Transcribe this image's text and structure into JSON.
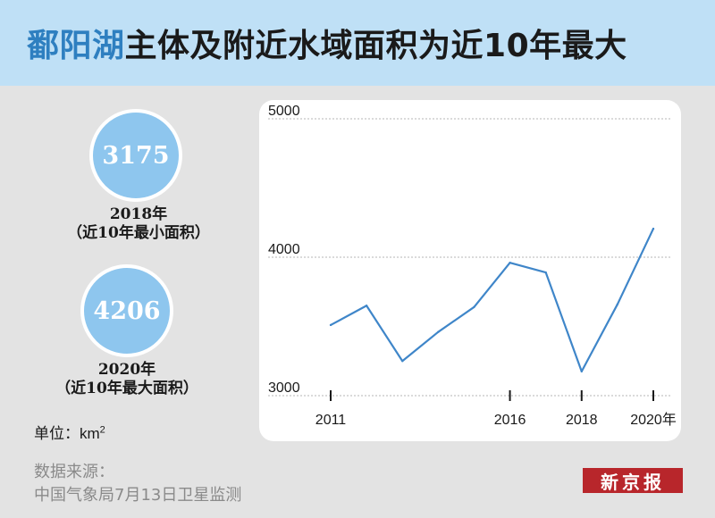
{
  "title": {
    "highlight": "鄱阳湖",
    "rest": "主体及附近水域面积为近10年最大"
  },
  "stats": [
    {
      "value": "3175",
      "year": "2018年",
      "note": "（近10年最小面积）"
    },
    {
      "value": "4206",
      "year": "2020年",
      "note": "（近10年最大面积）"
    }
  ],
  "unit": {
    "label": "单位：km",
    "sup": "2"
  },
  "source": {
    "label": "数据来源：",
    "text": "中国气象局7月13日卫星监测"
  },
  "brand": "新京报",
  "colors": {
    "header_bg": "#bfe0f6",
    "accent": "#2e7fc0",
    "line": "#3f86c9",
    "badge": "#8ec6ee",
    "brand_bg": "#b8262b"
  },
  "chart_data": {
    "type": "line",
    "x": [
      2011,
      2012,
      2013,
      2014,
      2015,
      2016,
      2017,
      2018,
      2019,
      2020
    ],
    "x_tick_labels": [
      {
        "x": 2011,
        "label": "2011"
      },
      {
        "x": 2016,
        "label": "2016"
      },
      {
        "x": 2018,
        "label": "2018"
      },
      {
        "x": 2020,
        "label": "2020年"
      }
    ],
    "series": [
      {
        "values": [
          3510,
          3650,
          3250,
          3460,
          3640,
          3960,
          3890,
          3175,
          3660,
          4206
        ]
      }
    ],
    "ylim": [
      3000,
      5000
    ],
    "yticks": [
      3000,
      4000,
      5000
    ],
    "grid": true
  }
}
